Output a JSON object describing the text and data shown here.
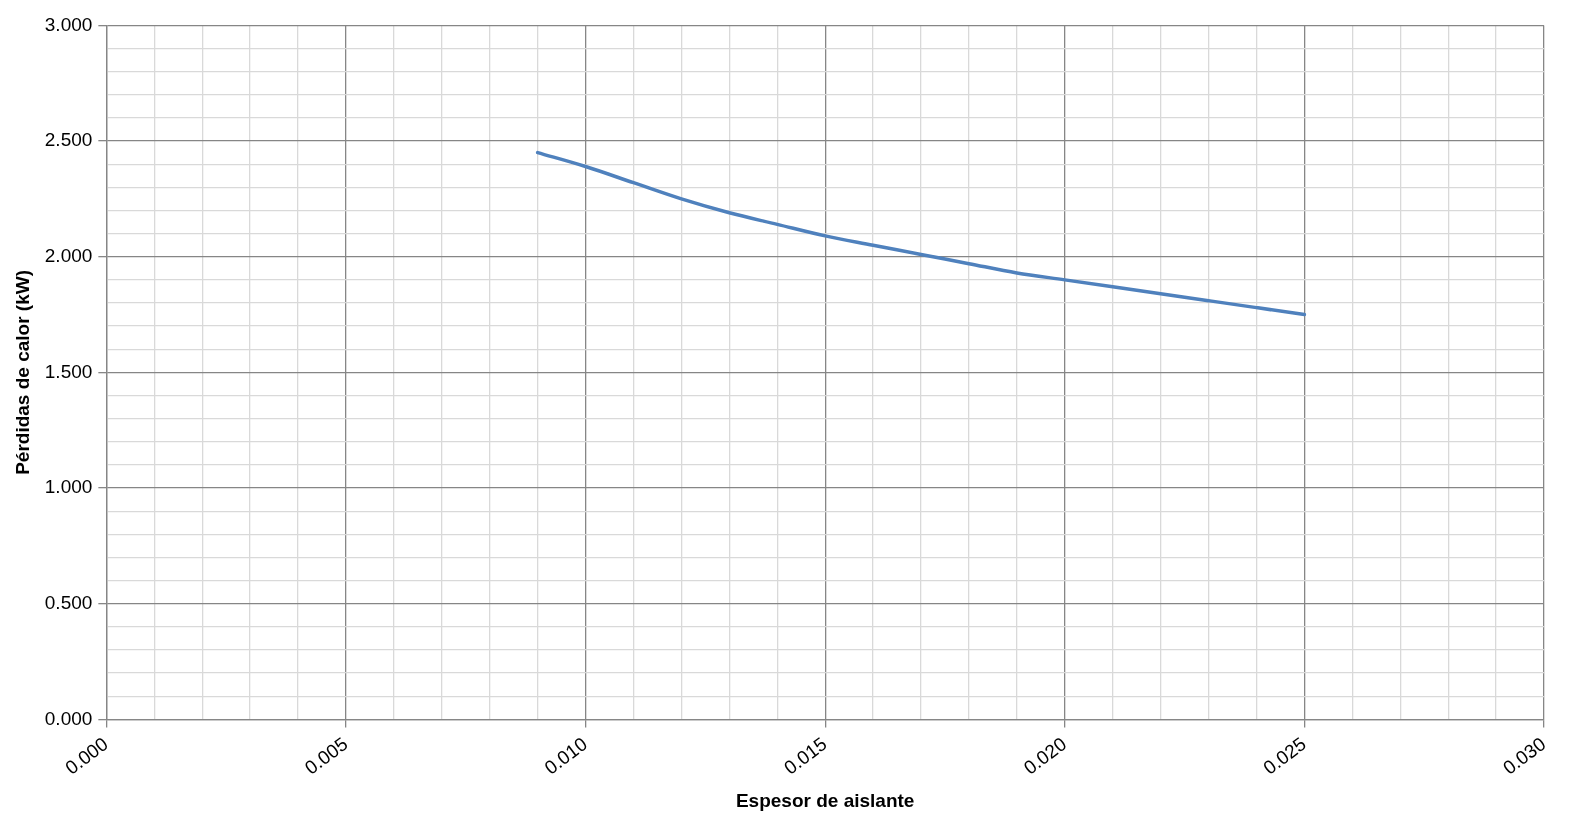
{
  "chart_data": {
    "type": "line",
    "xlabel": "Espesor de aislante",
    "ylabel": "Pérdidas de calor (kW)",
    "x": [
      0.009,
      0.01,
      0.011,
      0.012,
      0.013,
      0.014,
      0.015,
      0.016,
      0.017,
      0.018,
      0.019,
      0.02,
      0.021,
      0.022,
      0.023,
      0.024,
      0.025
    ],
    "series": [
      {
        "color": "#4f81bd",
        "values": [
          2.45,
          2.39,
          2.32,
          2.25,
          2.19,
          2.14,
          2.09,
          2.05,
          2.01,
          1.97,
          1.93,
          1.9,
          1.87,
          1.84,
          1.81,
          1.78,
          1.75
        ]
      }
    ],
    "xlim": [
      0,
      0.03
    ],
    "ylim": [
      0,
      3
    ],
    "xticks": [
      {
        "value": 0,
        "label": "0.000"
      },
      {
        "value": 0.001,
        "label": null
      },
      {
        "value": 0.002,
        "label": null
      },
      {
        "value": 0.003,
        "label": null
      },
      {
        "value": 0.004,
        "label": null
      },
      {
        "value": 0.005,
        "label": "0.005"
      },
      {
        "value": 0.006,
        "label": null
      },
      {
        "value": 0.007,
        "label": null
      },
      {
        "value": 0.008,
        "label": null
      },
      {
        "value": 0.009,
        "label": null
      },
      {
        "value": 0.01,
        "label": "0.010"
      },
      {
        "value": 0.011,
        "label": null
      },
      {
        "value": 0.012,
        "label": null
      },
      {
        "value": 0.013,
        "label": null
      },
      {
        "value": 0.014,
        "label": null
      },
      {
        "value": 0.015,
        "label": "0.015"
      },
      {
        "value": 0.016,
        "label": null
      },
      {
        "value": 0.017,
        "label": null
      },
      {
        "value": 0.018,
        "label": null
      },
      {
        "value": 0.019,
        "label": null
      },
      {
        "value": 0.02,
        "label": "0.020"
      },
      {
        "value": 0.021,
        "label": null
      },
      {
        "value": 0.022,
        "label": null
      },
      {
        "value": 0.023,
        "label": null
      },
      {
        "value": 0.024,
        "label": null
      },
      {
        "value": 0.025,
        "label": "0.025"
      },
      {
        "value": 0.026,
        "label": null
      },
      {
        "value": 0.027,
        "label": null
      },
      {
        "value": 0.028,
        "label": null
      },
      {
        "value": 0.029,
        "label": null
      },
      {
        "value": 0.03,
        "label": "0.030"
      }
    ],
    "yticks": [
      {
        "value": 0,
        "label": "0.000"
      },
      {
        "value": 0.1,
        "label": null
      },
      {
        "value": 0.2,
        "label": null
      },
      {
        "value": 0.3,
        "label": null
      },
      {
        "value": 0.4,
        "label": null
      },
      {
        "value": 0.5,
        "label": "0.500"
      },
      {
        "value": 0.6,
        "label": null
      },
      {
        "value": 0.7,
        "label": null
      },
      {
        "value": 0.8,
        "label": null
      },
      {
        "value": 0.9,
        "label": null
      },
      {
        "value": 1,
        "label": "1.000"
      },
      {
        "value": 1.1,
        "label": null
      },
      {
        "value": 1.2,
        "label": null
      },
      {
        "value": 1.3,
        "label": null
      },
      {
        "value": 1.4,
        "label": null
      },
      {
        "value": 1.5,
        "label": "1.500"
      },
      {
        "value": 1.6,
        "label": null
      },
      {
        "value": 1.7,
        "label": null
      },
      {
        "value": 1.8,
        "label": null
      },
      {
        "value": 1.9,
        "label": null
      },
      {
        "value": 2,
        "label": "2.000"
      },
      {
        "value": 2.1,
        "label": null
      },
      {
        "value": 2.2,
        "label": null
      },
      {
        "value": 2.3,
        "label": null
      },
      {
        "value": 2.4,
        "label": null
      },
      {
        "value": 2.5,
        "label": "2.500"
      },
      {
        "value": 2.6,
        "label": null
      },
      {
        "value": 2.7,
        "label": null
      },
      {
        "value": 2.8,
        "label": null
      },
      {
        "value": 2.9,
        "label": null
      },
      {
        "value": 3,
        "label": "3.000"
      }
    ],
    "grid": true,
    "marker": "none",
    "line_style": "solid"
  }
}
